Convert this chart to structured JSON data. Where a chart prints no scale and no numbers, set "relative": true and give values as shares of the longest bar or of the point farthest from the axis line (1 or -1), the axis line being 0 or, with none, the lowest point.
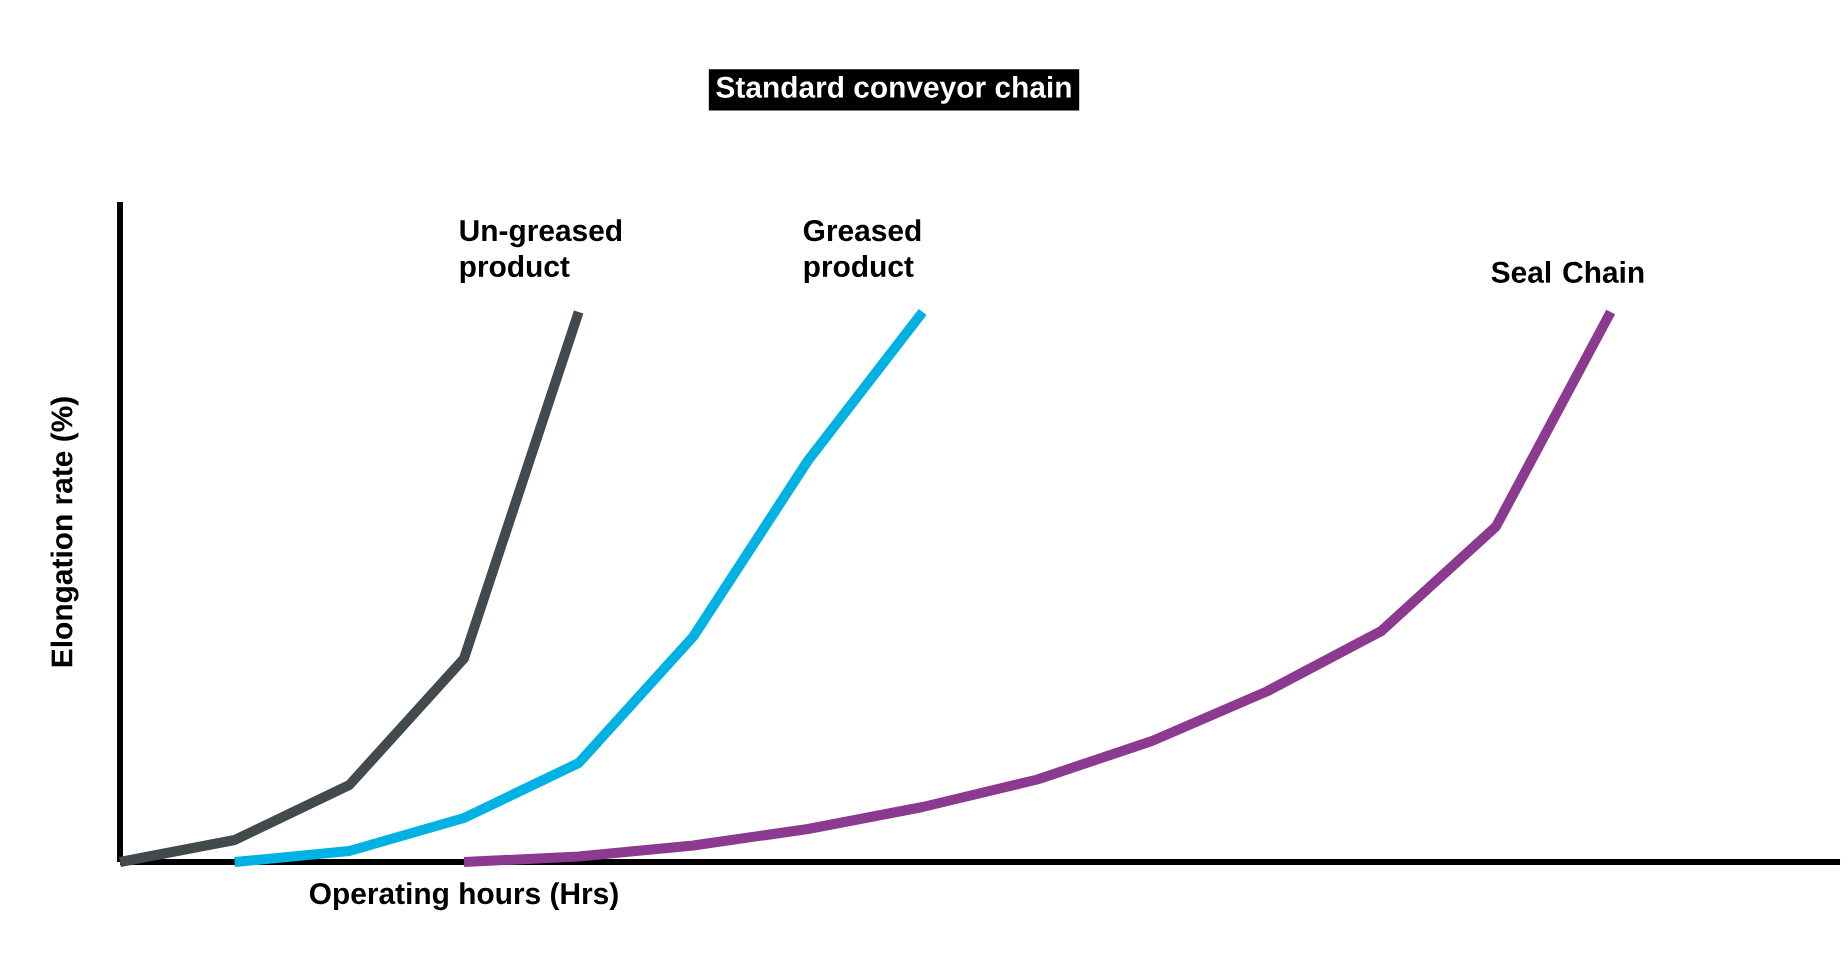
{
  "chart_data": {
    "type": "line",
    "title": "Standard conveyor chain",
    "xlabel": "Operating hours (Hrs)",
    "ylabel": "Elongation rate (%)",
    "relative": true,
    "categories": [
      null,
      null,
      null,
      null,
      null,
      null,
      null,
      null,
      null,
      null,
      null,
      null,
      null,
      null,
      null,
      null
    ],
    "series": [
      {
        "name": "Un-greased product",
        "color": "#434a4d",
        "values": [
          0,
          0.04,
          0.14,
          0.37,
          1.0,
          null,
          null,
          null,
          null,
          null,
          null,
          null,
          null,
          null,
          null,
          null
        ]
      },
      {
        "name": "Greased product",
        "color": "#00b2e3",
        "values": [
          null,
          0,
          0.02,
          0.08,
          0.18,
          0.41,
          0.73,
          1.0,
          null,
          null,
          null,
          null,
          null,
          null,
          null,
          null
        ]
      },
      {
        "name": "Seal Chain",
        "color": "#8b3a8f",
        "values": [
          null,
          null,
          null,
          0,
          0.01,
          0.03,
          0.06,
          0.1,
          0.15,
          0.22,
          0.31,
          0.42,
          0.61,
          1.0,
          null,
          null
        ]
      }
    ]
  }
}
